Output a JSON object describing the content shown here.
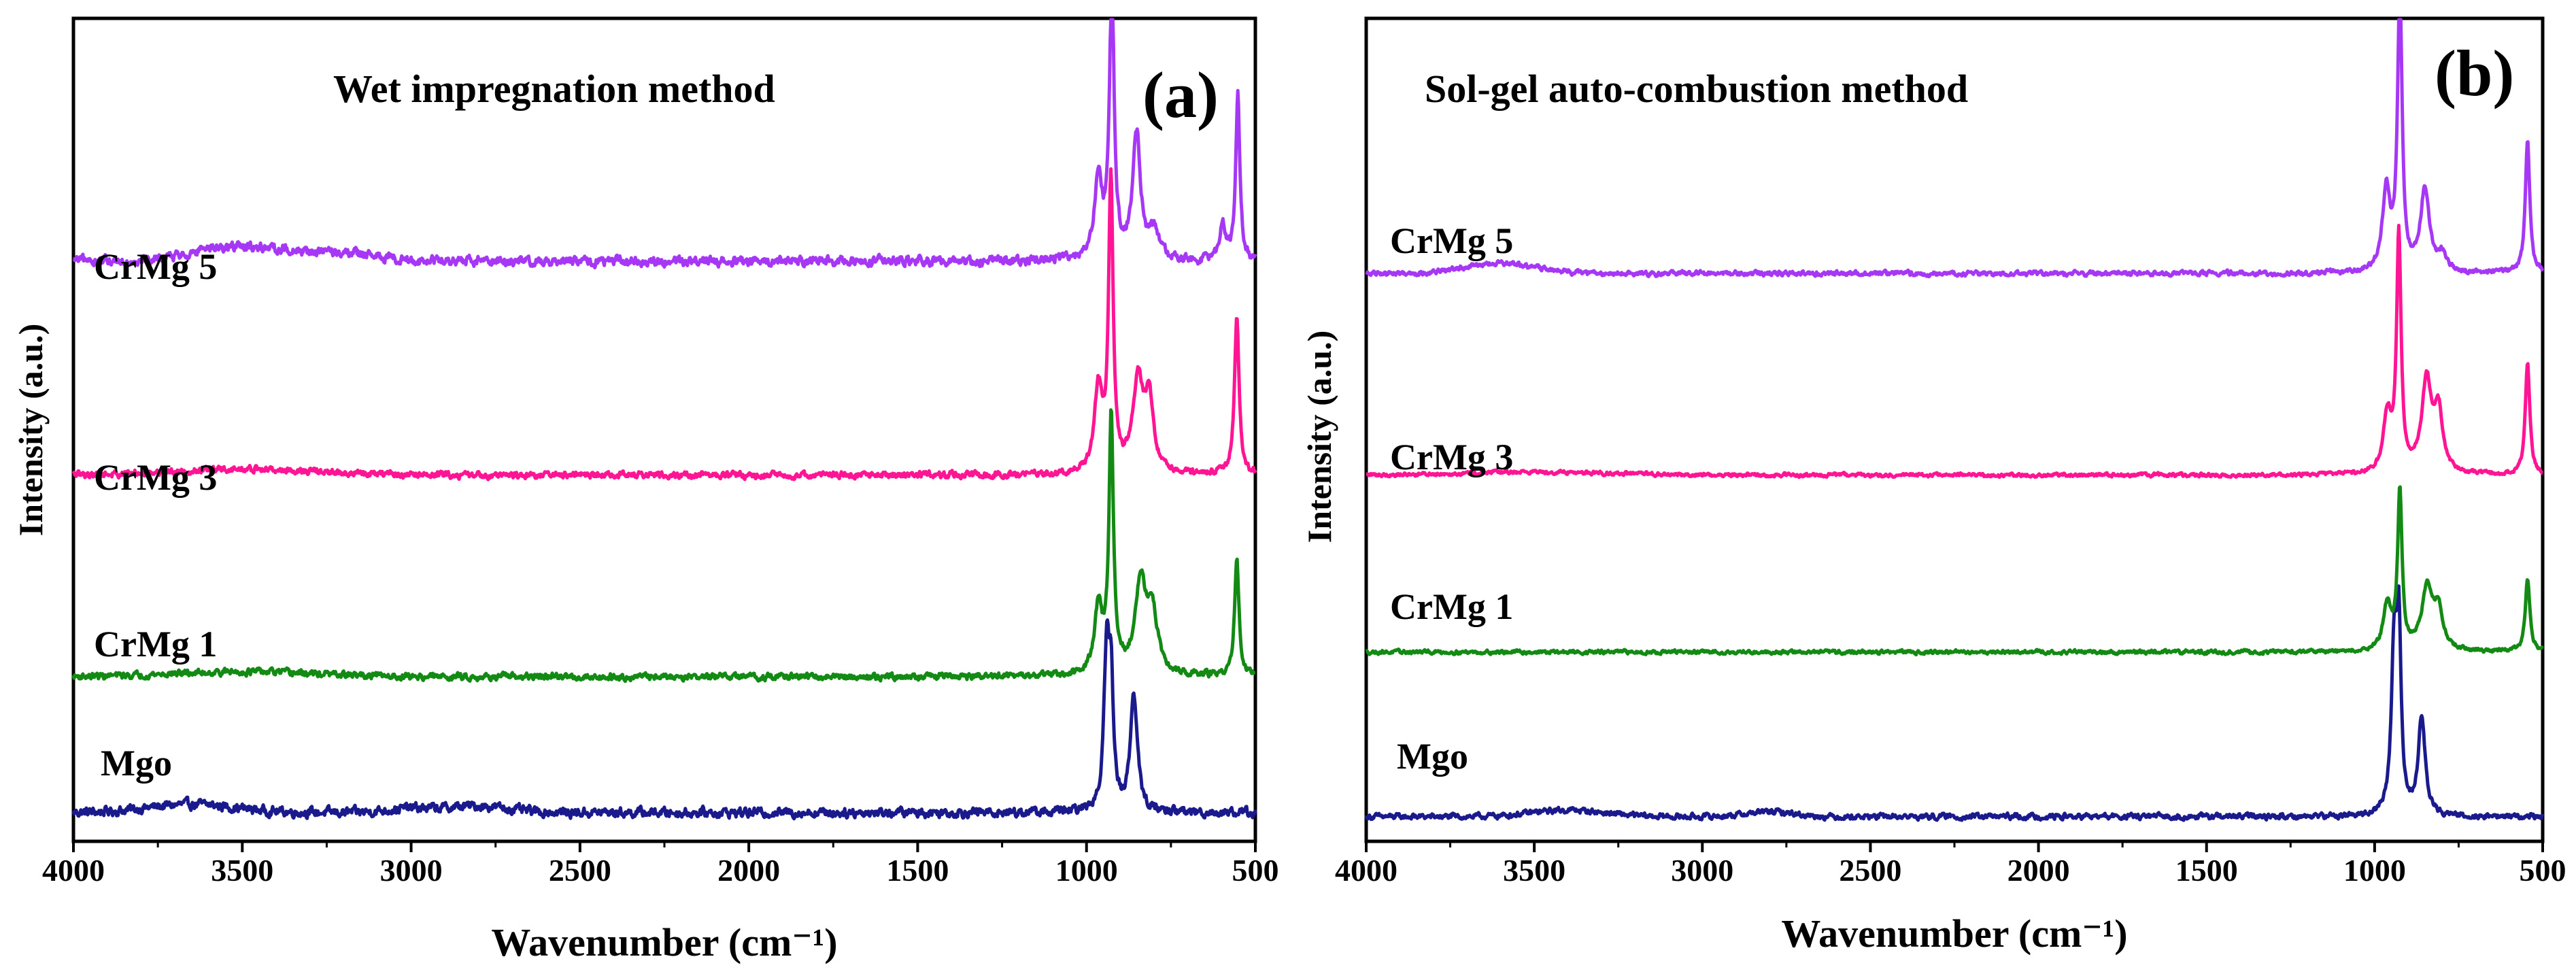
{
  "chart_data": [
    {
      "type": "line",
      "panel_label": "(a)",
      "title": "Wet impregnation method",
      "xlabel": "Wavenumber (cm⁻¹)",
      "ylabel": "Intensity (a.u.)",
      "xlim": [
        4000,
        500
      ],
      "x_ticks": [
        "4000",
        "3500",
        "3000",
        "2500",
        "2000",
        "1500",
        "1000",
        "500"
      ],
      "ylim": [
        0,
        10
      ],
      "y_ticks_visible": false,
      "series": [
        {
          "name": "Mgo",
          "color": "#1a1a8c",
          "baseline": 0.35,
          "noise": 0.1,
          "humps": [
            [
              3650,
              180,
              0.1
            ],
            [
              2800,
              120,
              0.08
            ],
            [
              3000,
              100,
              0.05
            ]
          ],
          "peaks": [
            [
              940,
              10,
              1.9
            ],
            [
              927,
              8,
              1.3
            ],
            [
              860,
              12,
              1.45
            ]
          ]
        },
        {
          "name": "CrMg 1",
          "color": "#138a13",
          "baseline": 2.0,
          "noise": 0.07,
          "humps": [
            [
              3500,
              300,
              0.06
            ]
          ],
          "peaks": [
            [
              965,
              14,
              0.8
            ],
            [
              927,
              8,
              3.1
            ],
            [
              840,
              20,
              1.1
            ],
            [
              805,
              18,
              0.7
            ],
            [
              555,
              8,
              1.4
            ]
          ]
        },
        {
          "name": "CrMg 3",
          "color": "#ff1493",
          "baseline": 4.45,
          "noise": 0.07,
          "humps": [
            [
              3500,
              300,
              0.07
            ]
          ],
          "peaks": [
            [
              965,
              14,
              1.0
            ],
            [
              928,
              8,
              3.55
            ],
            [
              848,
              18,
              1.1
            ],
            [
              815,
              15,
              0.85
            ],
            [
              555,
              8,
              1.9
            ]
          ]
        },
        {
          "name": "CrMg 5",
          "color": "#a638f5",
          "baseline": 7.05,
          "noise": 0.1,
          "humps": [
            [
              3500,
              200,
              0.18
            ],
            [
              3200,
              150,
              0.08
            ]
          ],
          "peaks": [
            [
              965,
              14,
              1.0
            ],
            [
              925,
              8,
              3.4
            ],
            [
              852,
              14,
              1.55
            ],
            [
              800,
              15,
              0.35
            ],
            [
              598,
              10,
              0.45
            ],
            [
              552,
              7,
              2.05
            ]
          ]
        }
      ]
    },
    {
      "type": "line",
      "panel_label": "(b)",
      "title": "Sol-gel auto-combustion method",
      "xlabel": "Wavenumber (cm⁻¹)",
      "ylabel": "Intensity (a.u.)",
      "xlim": [
        4000,
        500
      ],
      "x_ticks": [
        "4000",
        "3500",
        "3000",
        "2500",
        "2000",
        "1500",
        "1000",
        "500"
      ],
      "ylim": [
        0,
        10
      ],
      "y_ticks_visible": false,
      "series": [
        {
          "name": "Mgo",
          "color": "#1a1a8c",
          "baseline": 0.3,
          "noise": 0.06,
          "humps": [
            [
              3400,
              150,
              0.08
            ],
            [
              2800,
              100,
              0.06
            ]
          ],
          "peaks": [
            [
              942,
              10,
              1.9
            ],
            [
              928,
              8,
              2.1
            ],
            [
              860,
              12,
              1.2
            ]
          ]
        },
        {
          "name": "CrMg 1",
          "color": "#138a13",
          "baseline": 2.3,
          "noise": 0.04,
          "humps": [],
          "peaks": [
            [
              962,
              14,
              0.55
            ],
            [
              925,
              8,
              1.9
            ],
            [
              843,
              20,
              0.75
            ],
            [
              810,
              15,
              0.45
            ],
            [
              545,
              8,
              0.9
            ]
          ]
        },
        {
          "name": "CrMg 3",
          "color": "#ff1493",
          "baseline": 4.45,
          "noise": 0.04,
          "humps": [
            [
              3500,
              300,
              0.04
            ]
          ],
          "peaks": [
            [
              962,
              14,
              0.7
            ],
            [
              928,
              8,
              2.85
            ],
            [
              845,
              18,
              1.1
            ],
            [
              810,
              15,
              0.7
            ],
            [
              545,
              8,
              1.35
            ]
          ]
        },
        {
          "name": "CrMg 5",
          "color": "#a638f5",
          "baseline": 6.9,
          "noise": 0.05,
          "humps": [
            [
              3600,
              150,
              0.12
            ]
          ],
          "peaks": [
            [
              965,
              14,
              1.0
            ],
            [
              925,
              8,
              3.4
            ],
            [
              850,
              16,
              1.0
            ],
            [
              800,
              15,
              0.2
            ],
            [
              545,
              8,
              1.6
            ]
          ]
        }
      ]
    }
  ]
}
